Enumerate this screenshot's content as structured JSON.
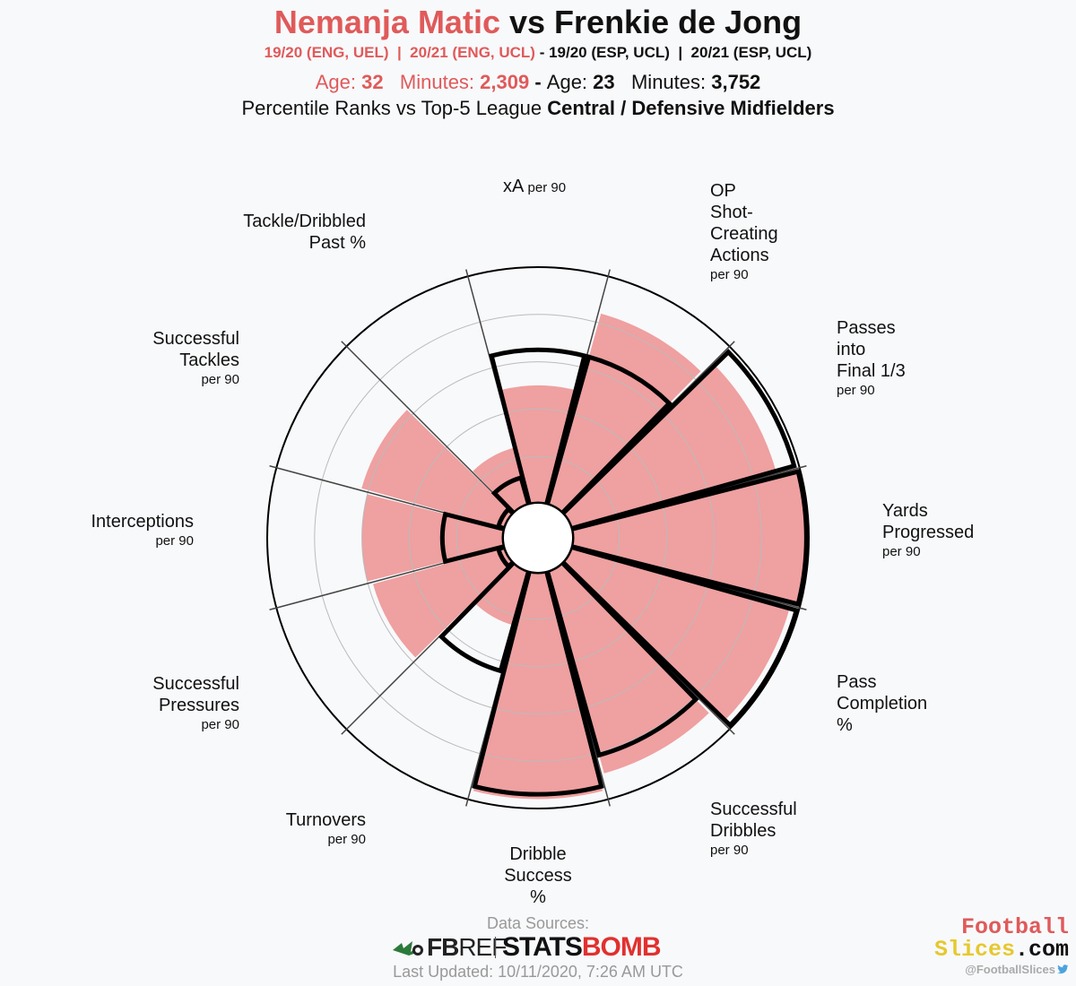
{
  "header": {
    "player1": "Nemanja Matic",
    "vs": "vs",
    "player2": "Frenkie de Jong",
    "seasons_p1": "19/20 (ENG, UEL)  |  20/21 (ENG, UCL)",
    "seasons_sep": " - ",
    "seasons_p2": "19/20 (ESP, UCL)  |  20/21 (ESP, UCL)",
    "p1_age_label": "Age: ",
    "p1_age": "32",
    "p1_minutes_label": "   Minutes: ",
    "p1_minutes": "2,309",
    "meta_sep": " - ",
    "p2_age_label": "Age: ",
    "p2_age": "23",
    "p2_minutes_label": "   Minutes: ",
    "p2_minutes": "3,752",
    "subtitle_prefix": "Percentile Ranks vs Top-5 League ",
    "subtitle_bold": "Central / Defensive Midfielders"
  },
  "chart_data": {
    "type": "polar-bar",
    "description_series": [
      {
        "name": "Nemanja Matic",
        "color": "#efa0a0",
        "style": "filled"
      },
      {
        "name": "Frenkie de Jong",
        "color": "#000000",
        "style": "outline"
      }
    ],
    "categories": [
      {
        "label": "xA",
        "unit": "per 90"
      },
      {
        "label": "OP\nShot-\nCreating\nActions",
        "unit": "per 90"
      },
      {
        "label": "Passes\ninto\nFinal 1/3",
        "unit": "per 90"
      },
      {
        "label": "Yards\nProgressed",
        "unit": "per 90"
      },
      {
        "label": "Pass\nCompletion\n%",
        "unit": ""
      },
      {
        "label": "Successful\nDribbles",
        "unit": "per 90"
      },
      {
        "label": "Dribble\nSuccess\n%",
        "unit": ""
      },
      {
        "label": "Turnovers",
        "unit": "per 90"
      },
      {
        "label": "Successful\nPressures",
        "unit": "per 90"
      },
      {
        "label": "Interceptions",
        "unit": "per 90"
      },
      {
        "label": "Successful\nTackles",
        "unit": "per 90"
      },
      {
        "label": "Tackle/Dribbled\nPast %",
        "unit": ""
      }
    ],
    "series": [
      {
        "name": "Nemanja Matic",
        "values": [
          50,
          84,
          90,
          99,
          96,
          89,
          96,
          24,
          58,
          60,
          63,
          25
        ]
      },
      {
        "name": "Frenkie de Jong",
        "values": [
          65,
          65,
          98,
          99,
          99,
          81,
          94,
          44,
          3,
          26,
          3,
          12
        ]
      }
    ],
    "ylim": [
      0,
      100
    ],
    "grid": true,
    "grid_rings": [
      20,
      40,
      60,
      80
    ]
  },
  "footer": {
    "sources_label": "Data Sources:",
    "fbref_a": "FB",
    "fbref_b": "REF",
    "statsbomb_a": "STATS",
    "statsbomb_b": "BOMB",
    "updated": "Last Updated: 10/11/2020, 7:26 AM UTC",
    "brand_line1": "Football",
    "brand_line2a": "Slices",
    "brand_line2b": ".com",
    "handle": "@FootballSlices"
  }
}
